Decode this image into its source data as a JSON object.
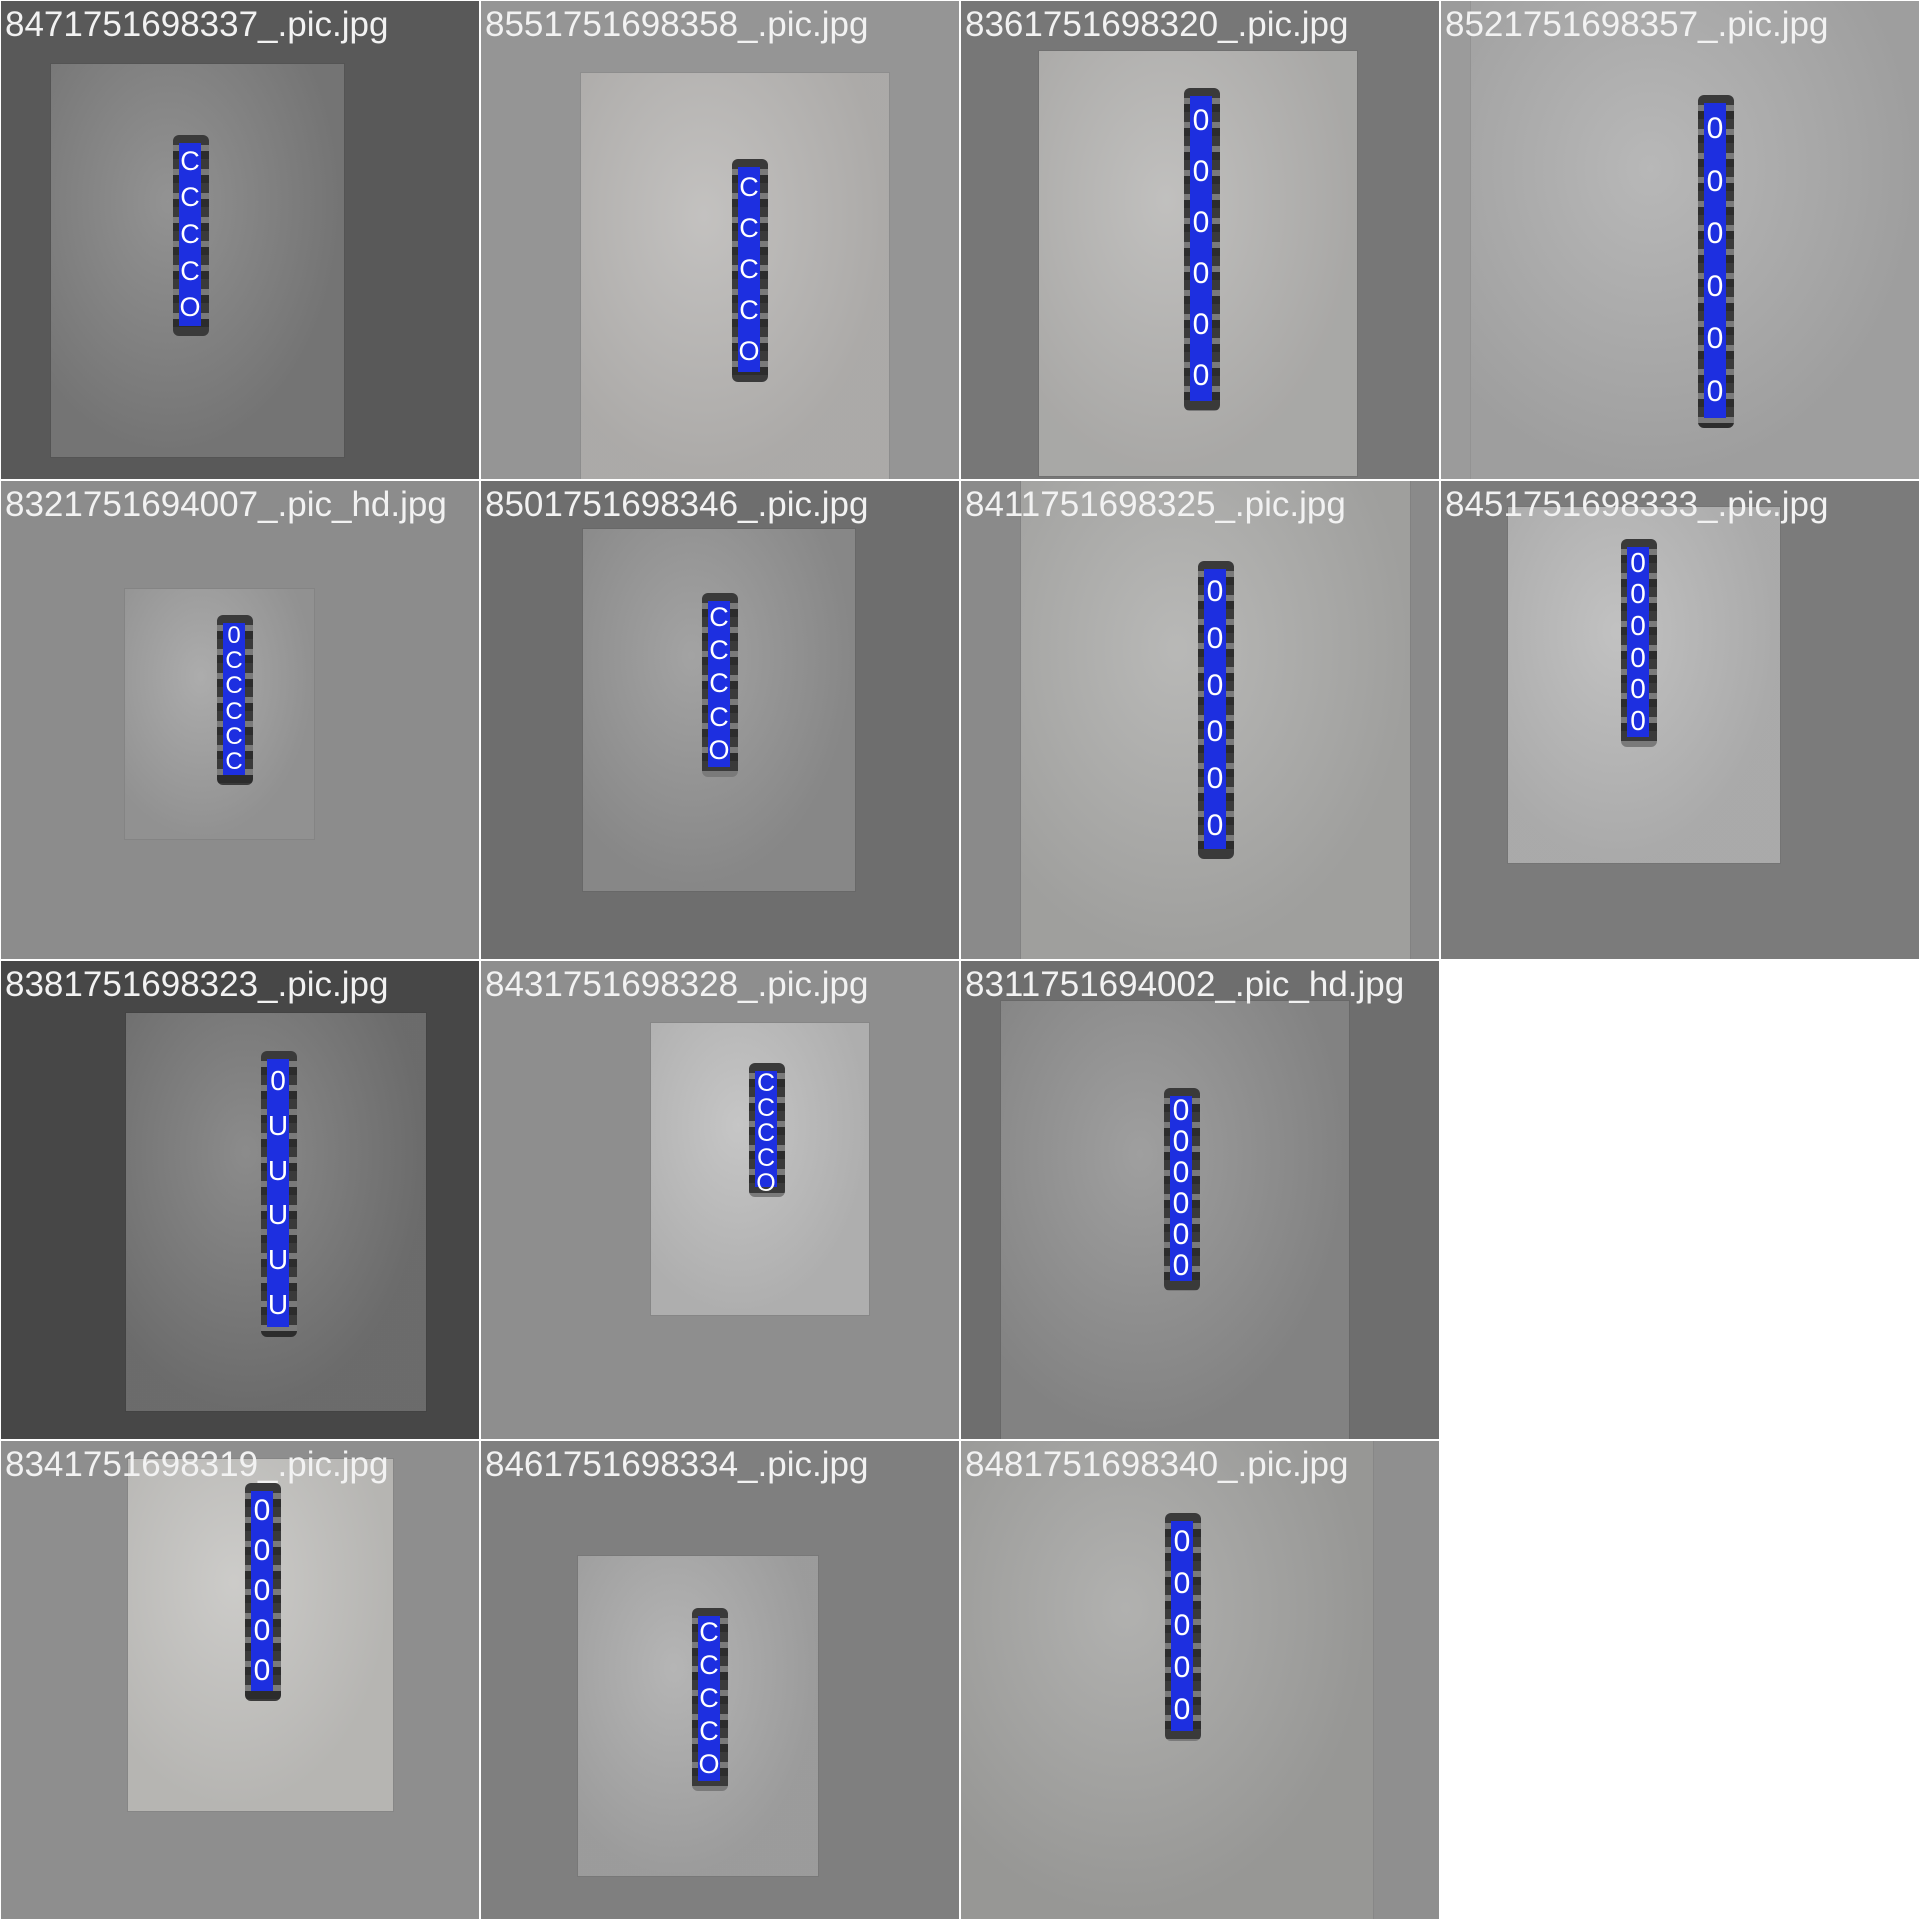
{
  "label_color": "#1d2fe0",
  "tiles": [
    {
      "file": "8471751698337_.pic.jpg",
      "bg": "#595959",
      "photo": "#7b7b7b",
      "labels": [
        "C",
        "C",
        "C",
        "C",
        "O"
      ]
    },
    {
      "file": "8551751698358_.pic.jpg",
      "bg": "#959595",
      "photo": "#b6b4b2",
      "labels": [
        "C",
        "C",
        "C",
        "C",
        "O"
      ]
    },
    {
      "file": "8361751698320_.pic.jpg",
      "bg": "#777777",
      "photo": "#b3b2b0",
      "labels": [
        "0",
        "0",
        "0",
        "0",
        "0",
        "0"
      ]
    },
    {
      "file": "8521751698357_.pic.jpg",
      "bg": "#9b9b9b",
      "photo": "#a8a8a8",
      "labels": [
        "0",
        "0",
        "0",
        "0",
        "0",
        "0"
      ]
    },
    {
      "file": "8321751694007_.pic_hd.jpg",
      "bg": "#8c8c8c",
      "photo": "#9a9a9a",
      "labels": [
        "0",
        "C",
        "C",
        "C",
        "C",
        "C"
      ]
    },
    {
      "file": "8501751698346_.pic.jpg",
      "bg": "#6e6e6e",
      "photo": "#8f8f8f",
      "labels": [
        "C",
        "C",
        "C",
        "C",
        "O"
      ]
    },
    {
      "file": "8411751698325_.pic.jpg",
      "bg": "#8a8a8a",
      "photo": "#a9a9a7",
      "labels": [
        "0",
        "0",
        "0",
        "0",
        "0",
        "0"
      ]
    },
    {
      "file": "8451751698333_.pic.jpg",
      "bg": "#7b7b7b",
      "photo": "#b4b4b4",
      "labels": [
        "0",
        "0",
        "0",
        "0",
        "0",
        "0"
      ]
    },
    {
      "file": "8381751698323_.pic.jpg",
      "bg": "#474747",
      "photo": "#727272",
      "labels": [
        "0",
        "U",
        "U",
        "U",
        "U",
        "U"
      ]
    },
    {
      "file": "8431751698328_.pic.jpg",
      "bg": "#8e8e8e",
      "photo": "#b9b9b9",
      "labels": [
        "C",
        "C",
        "C",
        "C",
        "O"
      ]
    },
    {
      "file": "8311751694002_.pic_hd.jpg",
      "bg": "#6e6e6e",
      "photo": "#8a8a8a",
      "labels": [
        "0",
        "0",
        "0",
        "0",
        "0",
        "0"
      ]
    },
    {
      "file": "8341751698319_.pic.jpg",
      "bg": "#8e8e8e",
      "photo": "#c1c0bd",
      "labels": [
        "0",
        "0",
        "0",
        "0",
        "0"
      ]
    },
    {
      "file": "8461751698334_.pic.jpg",
      "bg": "#7f7f7f",
      "photo": "#a5a5a5",
      "labels": [
        "C",
        "C",
        "C",
        "C",
        "O"
      ]
    },
    {
      "file": "8481751698340_.pic.jpg",
      "bg": "#8f8f8f",
      "photo": "#a0a09e",
      "labels": [
        "0",
        "0",
        "0",
        "0",
        "0"
      ]
    }
  ]
}
